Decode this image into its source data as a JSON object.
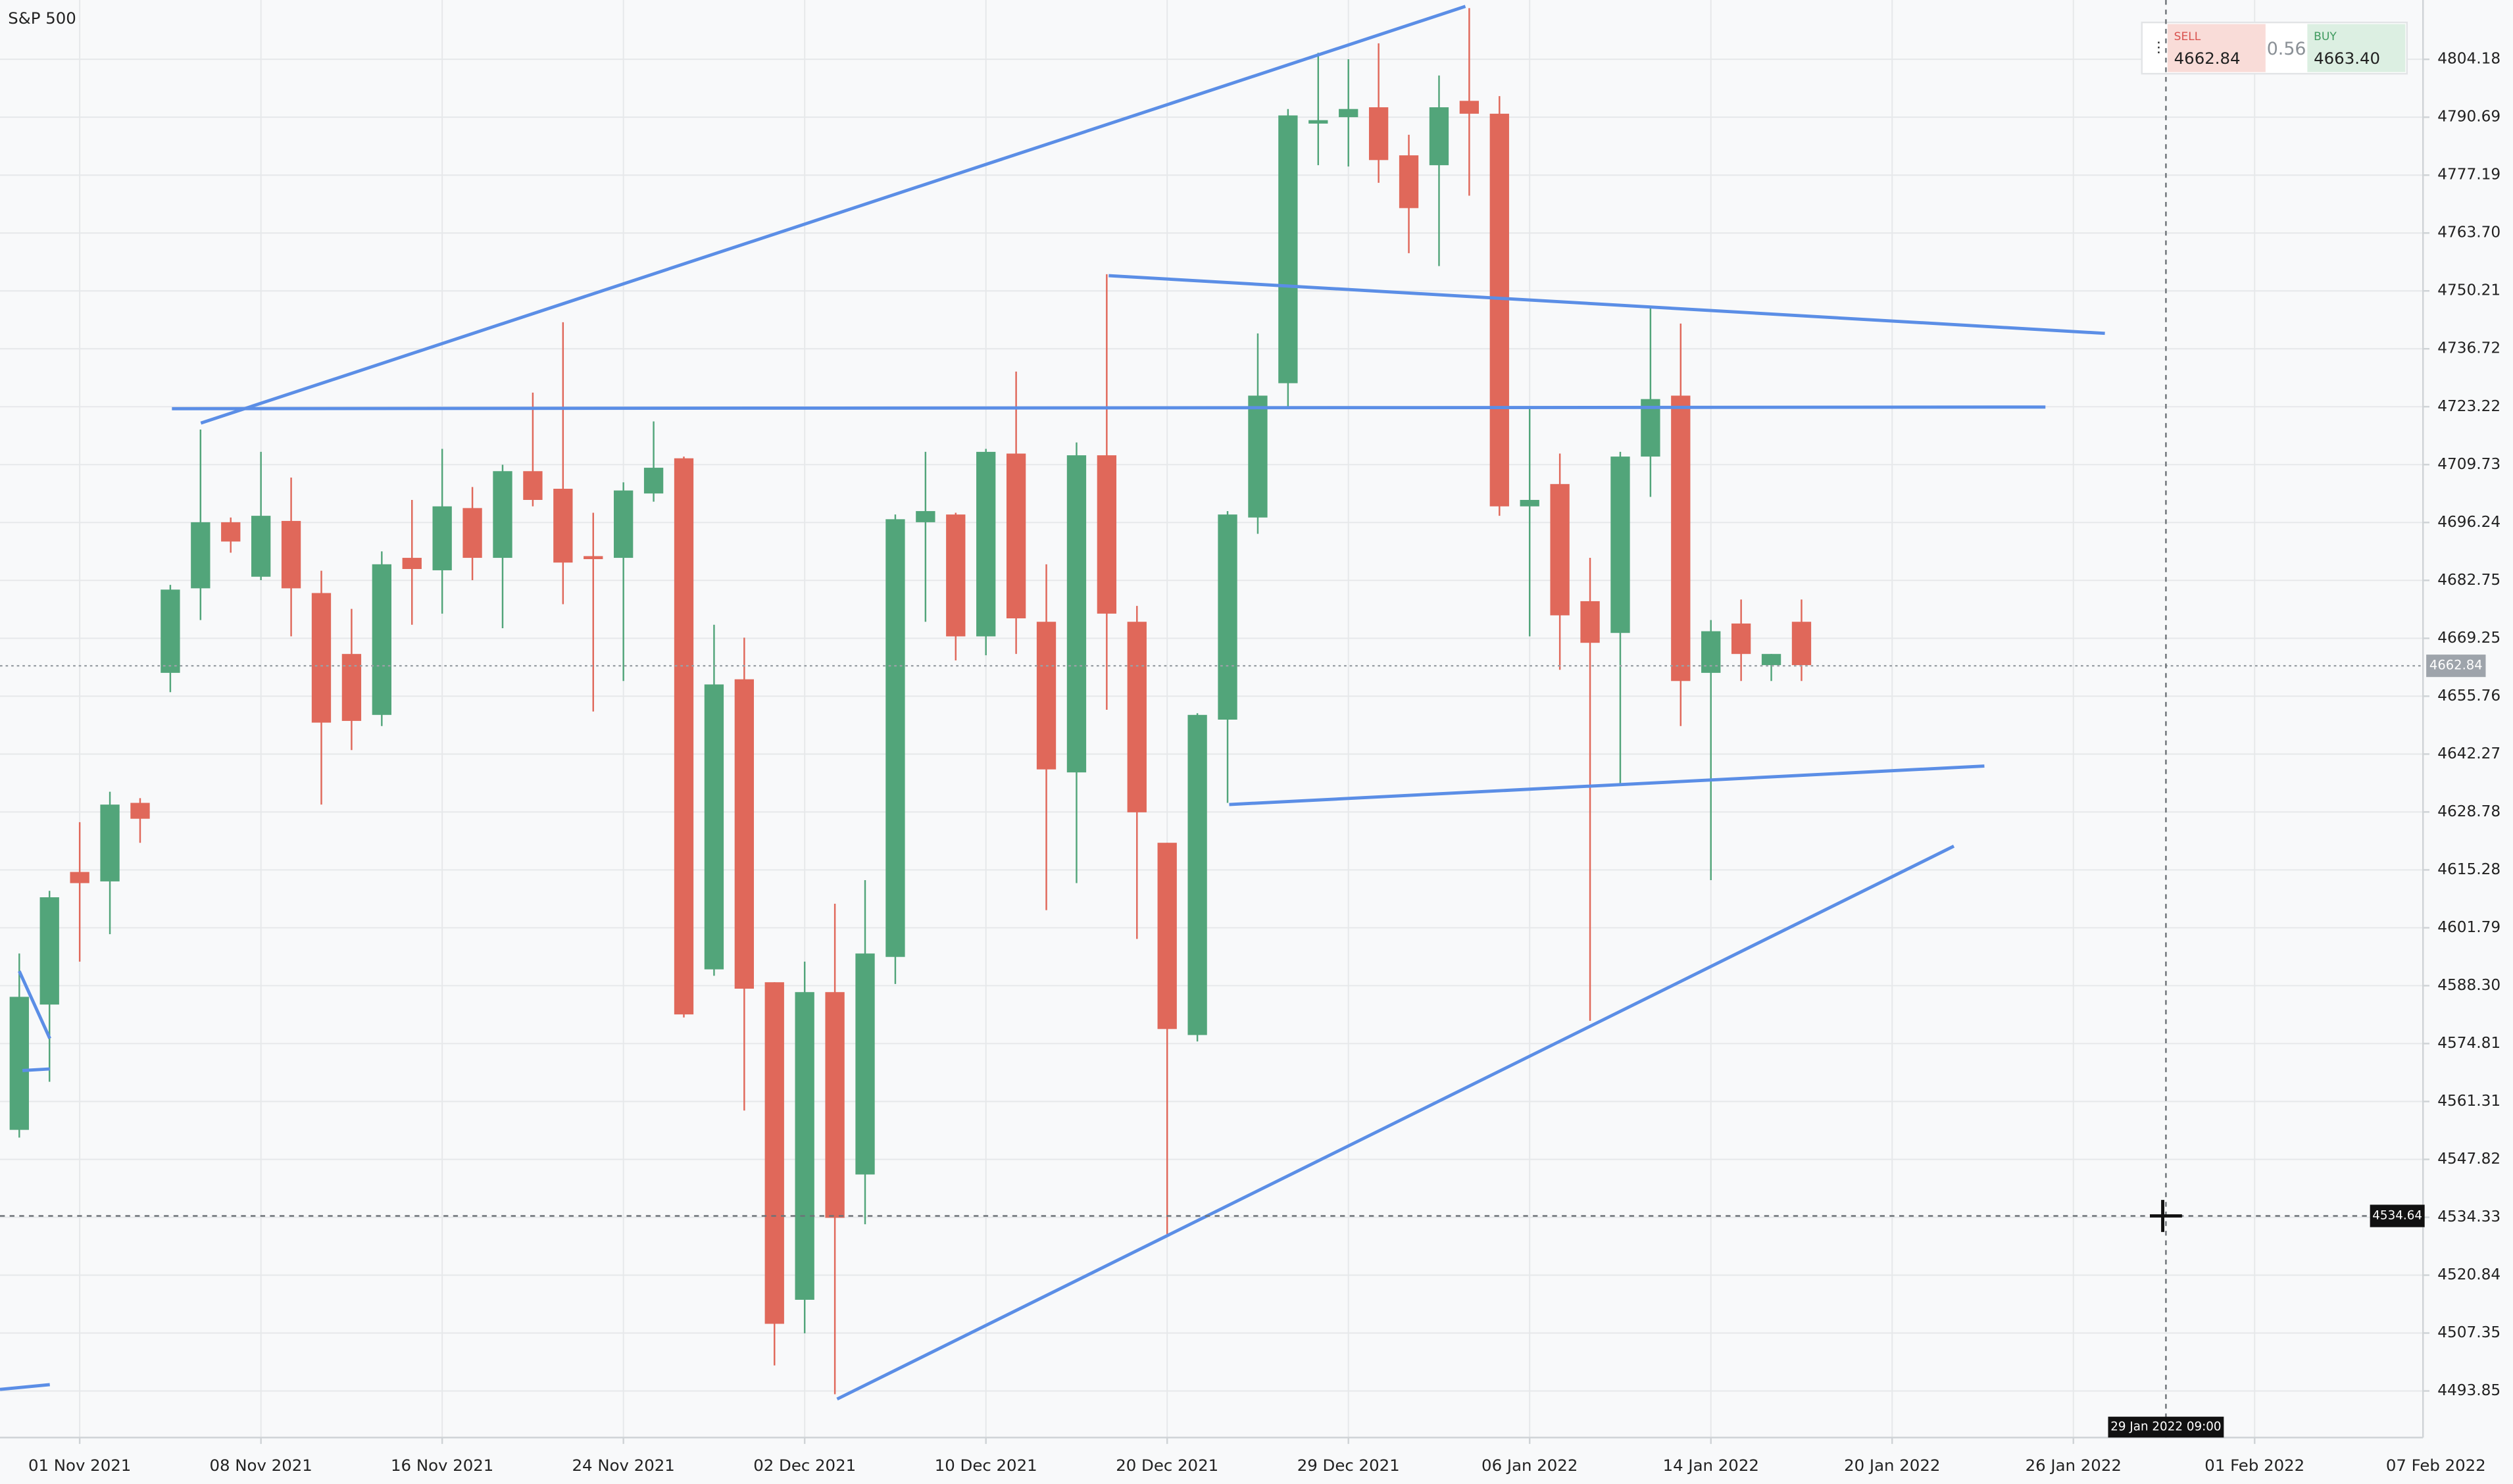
{
  "chart_data": {
    "type": "candlestick",
    "title": "S&P 500",
    "categories": [
      null,
      null,
      "01 Nov 2021",
      null,
      null,
      null,
      null,
      null,
      "08 Nov 2021",
      null,
      null,
      null,
      null,
      null,
      "16 Nov 2021",
      null,
      null,
      null,
      null,
      null,
      "24 Nov 2021",
      null,
      null,
      null,
      null,
      null,
      "02 Dec 2021",
      null,
      null,
      null,
      null,
      null,
      "10 Dec 2021",
      null,
      null,
      null,
      null,
      null,
      "20 Dec 2021",
      null,
      null,
      null,
      null,
      null,
      "29 Dec 2021",
      null,
      null,
      null,
      null,
      null,
      "06 Jan 2022",
      null,
      null,
      null,
      null,
      null,
      "14 Jan 2022",
      null,
      null,
      null,
      null,
      null,
      "20 Jan 2022",
      null,
      null,
      null,
      null,
      null,
      "26 Jan 2022",
      null,
      null,
      null,
      null,
      null,
      "01 Feb 2022",
      null,
      null,
      null,
      null,
      null,
      "07 Feb 2022"
    ],
    "open": [
      4554.7,
      4583.9,
      4614.8,
      4612.6,
      4630.9,
      4661.2,
      4680.9,
      4696.3,
      4683.6,
      4696.6,
      4679.8,
      4665.6,
      4651.4,
      4688.0,
      4685.1,
      4699.6,
      4688.0,
      4708.2,
      4704.1,
      4688.4,
      4688.0,
      4703.0,
      4711.2,
      4592.1,
      4659.7,
      4589.1,
      4515.1,
      4586.8,
      4544.3,
      4595.0,
      4696.3,
      4698.1,
      4669.7,
      4712.3,
      4673.1,
      4638.0,
      4711.9,
      4673.1,
      4621.6,
      4576.8,
      4650.3,
      4697.4,
      4728.7,
      4789.2,
      4790.7,
      4793.0,
      4781.8,
      4779.5,
      4794.5,
      4791.5,
      4700.0,
      4705.2,
      4677.9,
      4670.5,
      4711.6,
      4725.8,
      4661.2,
      4672.7,
      4663.0,
      4673.1,
      null,
      null,
      null,
      null,
      null,
      null,
      null,
      null,
      null,
      null,
      null,
      null,
      null,
      null,
      null,
      null,
      null,
      null,
      null,
      null,
      null
    ],
    "high": [
      4595.8,
      4610.4,
      4626.4,
      4633.5,
      4632.0,
      4681.7,
      4717.9,
      4697.4,
      4712.7,
      4706.7,
      4685.0,
      4676.1,
      4689.5,
      4701.5,
      4713.4,
      4704.5,
      4709.7,
      4726.5,
      4742.9,
      4698.5,
      4705.6,
      4719.8,
      4711.6,
      4672.4,
      4669.4,
      4589.1,
      4593.9,
      4607.4,
      4612.9,
      4698.1,
      4712.7,
      4698.5,
      4713.4,
      4731.4,
      4686.5,
      4714.9,
      4754.1,
      4676.8,
      4621.6,
      4651.8,
      4698.9,
      4740.3,
      4792.6,
      4805.7,
      4804.2,
      4807.9,
      4786.6,
      4800.4,
      4816.1,
      4795.6,
      4722.8,
      4712.3,
      4688.0,
      4712.7,
      4746.7,
      4742.6,
      4673.5,
      4678.3,
      4665.6,
      4678.3,
      null,
      null,
      null,
      null,
      null,
      null,
      null,
      null,
      null,
      null,
      null,
      null,
      null,
      null,
      null,
      null,
      null,
      null,
      null,
      null,
      null
    ],
    "low": [
      4552.9,
      4565.9,
      4593.9,
      4600.3,
      4621.6,
      4656.7,
      4673.5,
      4689.2,
      4682.8,
      4669.7,
      4630.5,
      4643.2,
      4648.8,
      4672.4,
      4675.0,
      4682.8,
      4671.6,
      4700.0,
      4677.2,
      4652.2,
      4659.3,
      4701.1,
      4580.9,
      4590.6,
      4559.2,
      4499.8,
      4507.3,
      4493.1,
      4532.7,
      4588.7,
      4673.1,
      4664.1,
      4665.3,
      4665.6,
      4605.9,
      4612.2,
      4652.6,
      4599.2,
      4530.4,
      4575.3,
      4630.9,
      4693.6,
      4723.1,
      4779.5,
      4779.2,
      4775.4,
      4759.0,
      4756.0,
      4772.4,
      4697.8,
      4669.7,
      4661.9,
      4580.1,
      4635.0,
      4702.2,
      4648.8,
      4612.9,
      4659.3,
      4659.3,
      4659.3,
      null,
      null,
      null,
      null,
      null,
      null,
      null,
      null,
      null,
      null,
      null,
      null,
      null,
      null,
      null,
      null,
      null,
      null,
      null,
      null,
      null
    ],
    "close": [
      4585.7,
      4608.9,
      4612.2,
      4630.5,
      4627.2,
      4680.6,
      4696.3,
      4691.8,
      4697.8,
      4680.9,
      4649.6,
      4650.0,
      4686.5,
      4685.4,
      4700.0,
      4688.0,
      4708.2,
      4701.5,
      4686.9,
      4687.7,
      4703.7,
      4709.0,
      4581.6,
      4658.5,
      4587.6,
      4509.5,
      4586.8,
      4534.2,
      4595.8,
      4697.0,
      4698.9,
      4669.7,
      4712.7,
      4673.9,
      4638.7,
      4711.9,
      4675.0,
      4628.7,
      4578.2,
      4651.4,
      4698.1,
      4725.8,
      4791.1,
      4790.0,
      4792.6,
      4780.7,
      4769.5,
      4793.0,
      4791.5,
      4700.0,
      4701.5,
      4674.6,
      4668.2,
      4711.6,
      4725.0,
      4659.3,
      4670.9,
      4665.6,
      4665.6,
      4663.0,
      null,
      null,
      null,
      null,
      null,
      null,
      null,
      null,
      null,
      null,
      null,
      null,
      null,
      null,
      null,
      null,
      null,
      null,
      null,
      null,
      null
    ],
    "up_color": "#52a57a",
    "down_color": "#e0685a",
    "ylim": [
      4483.0,
      4818.0
    ],
    "yticks": [
      4493.85,
      4507.35,
      4520.84,
      4534.33,
      4547.82,
      4561.31,
      4574.81,
      {
        "value": 4588.3,
        "label": "4588.30"
      },
      4601.79,
      4615.28,
      4628.78,
      4642.27,
      4655.76,
      4669.25,
      4682.75,
      4696.24,
      4709.73,
      4723.22,
      4736.72,
      4750.21,
      {
        "value": 4763.7,
        "label": "4763.70"
      },
      4777.19,
      4790.69,
      4804.18
    ],
    "grid": true,
    "price_line": 4662.84,
    "crosshair": {
      "price": 4534.64,
      "time": "29 Jan 2022 09:00"
    }
  },
  "trade_panel": {
    "sell_label": "SELL",
    "sell": "4662.84",
    "spread": "0.56",
    "buy_label": "BUY",
    "buy": "4663.40"
  }
}
